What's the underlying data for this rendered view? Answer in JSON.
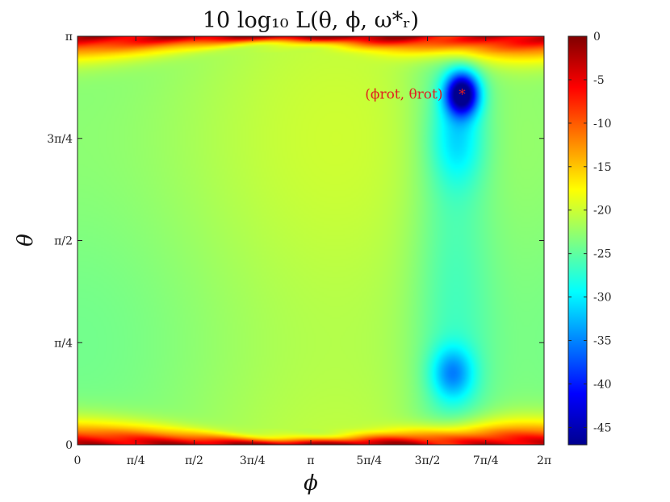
{
  "chart_data": {
    "type": "heatmap",
    "title": "10 log₁₀ L(θ, ϕ, ω*ᵣ)",
    "xlabel": "ϕ",
    "ylabel": "θ",
    "xlim": [
      0,
      6.2832
    ],
    "ylim": [
      0,
      3.1416
    ],
    "x_ticks": [
      {
        "value": 0,
        "label": "0"
      },
      {
        "value": 0.7854,
        "label": "π/4"
      },
      {
        "value": 1.5708,
        "label": "π/2"
      },
      {
        "value": 2.3562,
        "label": "3π/4"
      },
      {
        "value": 3.1416,
        "label": "π"
      },
      {
        "value": 3.927,
        "label": "5π/4"
      },
      {
        "value": 4.7124,
        "label": "3π/2"
      },
      {
        "value": 5.4978,
        "label": "7π/4"
      },
      {
        "value": 6.2832,
        "label": "2π"
      }
    ],
    "y_ticks": [
      {
        "value": 0,
        "label": "0"
      },
      {
        "value": 0.7854,
        "label": "π/4"
      },
      {
        "value": 1.5708,
        "label": "π/2"
      },
      {
        "value": 2.3562,
        "label": "3π/4"
      },
      {
        "value": 3.1416,
        "label": "π"
      }
    ],
    "colorbar": {
      "range": [
        -47,
        0
      ],
      "ticks": [
        0,
        -5,
        -10,
        -15,
        -20,
        -25,
        -30,
        -35,
        -40,
        -45
      ],
      "colormap": "jet",
      "stops": [
        "#00008f",
        "#0000ff",
        "#00ffff",
        "#ffff00",
        "#ff0000",
        "#800000"
      ]
    },
    "field_features": {
      "background_level": -22,
      "right_band_level": -26,
      "edge_level_min": -5,
      "minima": [
        {
          "phi": 5.18,
          "theta": 2.7,
          "level": -47
        },
        {
          "phi": 5.05,
          "theta": 0.55,
          "level": -35
        }
      ]
    },
    "annotation": {
      "text": "(ϕrot, θrot)",
      "phi": 5.18,
      "theta": 2.7,
      "marker": "*",
      "color": "#e02020"
    }
  }
}
